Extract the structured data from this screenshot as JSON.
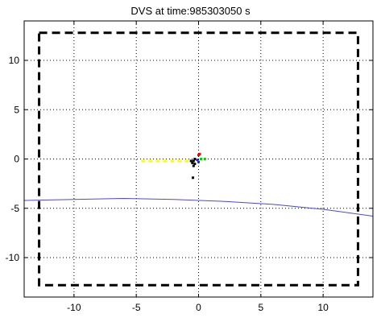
{
  "chart_data": {
    "type": "scatter",
    "title": "DVS at time:985303050 s",
    "xlabel": "",
    "ylabel": "",
    "xlim": [
      -14,
      14
    ],
    "ylim": [
      -14,
      14
    ],
    "grid": true,
    "x_ticks": [
      -10,
      -5,
      0,
      5,
      10
    ],
    "y_ticks": [
      -10,
      -5,
      0,
      5,
      10
    ],
    "x_tick_labels": [
      "-10",
      "-5",
      "0",
      "5",
      "10"
    ],
    "y_tick_labels": [
      "-10",
      "-5",
      "0",
      "5",
      "10"
    ],
    "series": [
      {
        "kind": "dashed-boundary",
        "color": "#000000",
        "x": [
          -12.8,
          12.8,
          12.8,
          -12.8,
          -12.8
        ],
        "y": [
          12.8,
          12.8,
          -12.8,
          -12.8,
          12.8
        ]
      },
      {
        "kind": "line",
        "color": "#4a4ad8",
        "x": [
          -14,
          -10,
          -6,
          -2,
          2,
          6,
          10,
          14
        ],
        "y": [
          -4.2,
          -4.1,
          -4.0,
          -4.1,
          -4.3,
          -4.6,
          -5.1,
          -5.8
        ]
      },
      {
        "kind": "dashed-trace",
        "color": "#ffff00",
        "x": [
          -4.6,
          -0.6
        ],
        "y": [
          -0.2,
          -0.2
        ]
      },
      {
        "kind": "points",
        "color": "#000000",
        "x": [
          -0.4,
          -0.3,
          -0.5,
          -0.4,
          -0.6,
          -0.3,
          -0.45
        ],
        "y": [
          -0.2,
          0.0,
          -0.4,
          -0.7,
          -0.2,
          -0.5,
          -1.9
        ]
      },
      {
        "kind": "points",
        "color": "#2020ff",
        "x": [
          -0.1,
          0.0
        ],
        "y": [
          -0.1,
          -0.3
        ]
      },
      {
        "kind": "points",
        "color": "#ff0000",
        "x": [
          0.0,
          0.1
        ],
        "y": [
          0.4,
          0.5
        ]
      },
      {
        "kind": "points",
        "color": "#00cc00",
        "x": [
          0.2,
          0.5
        ],
        "y": [
          0.0,
          0.0
        ]
      }
    ]
  }
}
